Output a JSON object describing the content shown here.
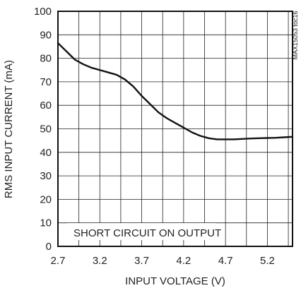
{
  "chart_data": {
    "type": "line",
    "title": "",
    "xlabel": "INPUT VOLTAGE (V)",
    "ylabel": "RMS INPUT CURRENT (mA)",
    "xlim": [
      2.7,
      5.5
    ],
    "ylim": [
      0,
      100
    ],
    "x_ticks": [
      2.7,
      3.2,
      3.7,
      4.2,
      4.7,
      5.2
    ],
    "x_tick_labels": [
      "2.7",
      "3.2",
      "3.7",
      "4.2",
      "4.7",
      "5.2"
    ],
    "y_ticks": [
      0,
      10,
      20,
      30,
      40,
      50,
      60,
      70,
      80,
      90,
      100
    ],
    "y_tick_labels": [
      "0",
      "10",
      "20",
      "30",
      "40",
      "50",
      "60",
      "70",
      "80",
      "90",
      "100"
    ],
    "grid": true,
    "annotation": "SHORT CIRCUIT ON OUTPUT",
    "watermark": "MAX15053 toc16",
    "series": [
      {
        "x": [
          2.7,
          2.8,
          2.9,
          3.0,
          3.1,
          3.2,
          3.3,
          3.4,
          3.5,
          3.6,
          3.7,
          3.8,
          3.9,
          4.0,
          4.1,
          4.2,
          4.3,
          4.4,
          4.5,
          4.6,
          4.7,
          4.8,
          4.9,
          5.0,
          5.1,
          5.2,
          5.3,
          5.4,
          5.5
        ],
        "values": [
          86.5,
          83.0,
          79.5,
          77.5,
          76.0,
          75.0,
          74.0,
          73.0,
          71.0,
          68.0,
          64.0,
          60.5,
          57.0,
          54.5,
          52.5,
          50.5,
          48.5,
          47.0,
          46.0,
          45.5,
          45.5,
          45.5,
          45.7,
          45.9,
          46.0,
          46.1,
          46.2,
          46.4,
          46.6
        ]
      }
    ]
  },
  "colors": {
    "line": "#111111",
    "grid": "#222222",
    "frame": "#111111",
    "text": "#222222",
    "background": "#ffffff"
  }
}
